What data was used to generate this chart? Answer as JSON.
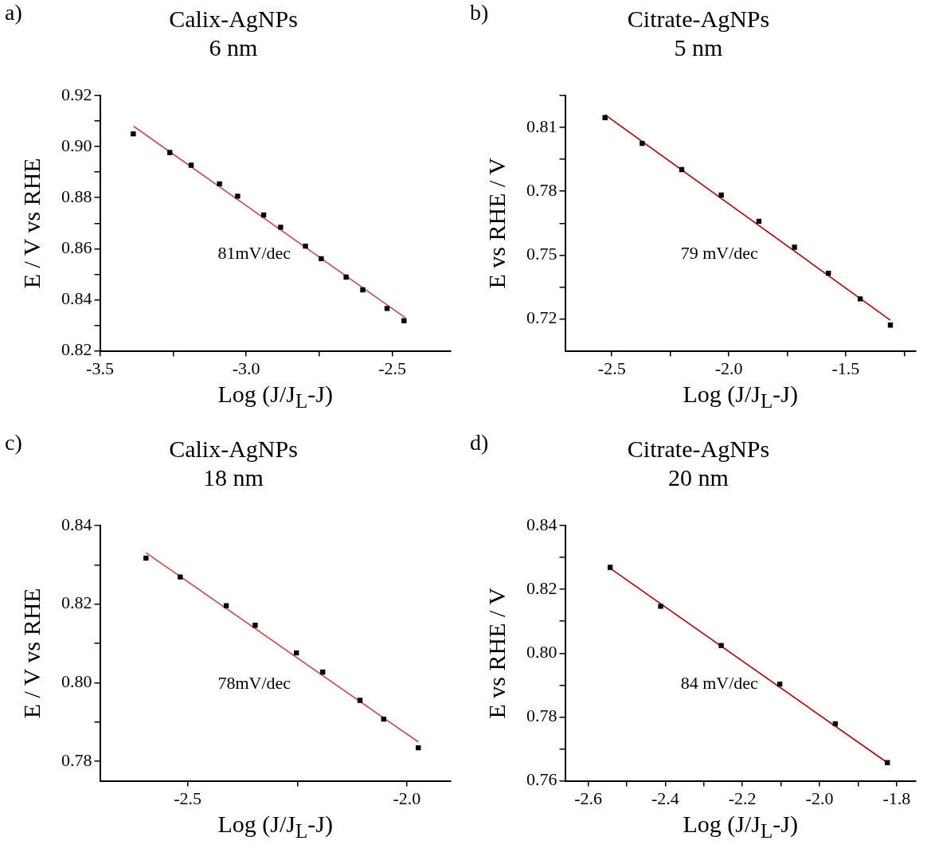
{
  "chart_data": [
    {
      "type": "scatter",
      "title": "Calix-AgNPs",
      "subtitle": "6 nm",
      "xlabel": "Log (J/J$_{L}$-J)",
      "ylabel": "E / V vs RHE",
      "annotations": [
        "a)",
        "81mV/dec"
      ],
      "xlim": [
        -3.5,
        -2.3
      ],
      "xticks": [
        -3.5,
        {
          "value": -3.25,
          "label": null
        },
        {
          "value": -3.0,
          "label": "-3.0"
        },
        {
          "value": -2.75,
          "label": null
        },
        -2.5
      ],
      "ylim": [
        0.82,
        0.92
      ],
      "yticks": [
        {
          "value": 0.82,
          "label": "0.82"
        },
        {
          "value": 0.83,
          "label": null
        },
        {
          "value": 0.84,
          "label": "0.84"
        },
        {
          "value": 0.85,
          "label": null
        },
        {
          "value": 0.86,
          "label": "0.86"
        },
        {
          "value": 0.87,
          "label": null
        },
        {
          "value": 0.88,
          "label": "0.88"
        },
        {
          "value": 0.89,
          "label": null
        },
        {
          "value": 0.9,
          "label": "0.90"
        },
        {
          "value": 0.91,
          "label": null
        },
        {
          "value": 0.92,
          "label": "0.92"
        }
      ],
      "series": [
        {
          "type": "scatter",
          "marker": "square",
          "color": "#000000",
          "x": [
            -3.386,
            -3.261,
            -3.188,
            -3.091,
            -3.029,
            -2.94,
            -2.882,
            -2.797,
            -2.743,
            -2.658,
            -2.601,
            -2.518,
            -2.46
          ],
          "values": [
            0.905,
            0.8977,
            0.8927,
            0.8854,
            0.8806,
            0.8732,
            0.8684,
            0.861,
            0.8561,
            0.8489,
            0.8439,
            0.8366,
            0.8318
          ]
        },
        {
          "type": "line",
          "color": "#d04848",
          "line_style": "solid",
          "x": [
            -3.385,
            -2.456
          ],
          "values": [
            0.908,
            0.833
          ]
        }
      ]
    },
    {
      "type": "scatter",
      "title": "Citrate-AgNPs",
      "subtitle": "5 nm",
      "xlabel": "Log (J/J$_{L}$-J)",
      "ylabel": "E vs RHE / V",
      "annotations": [
        "b)",
        "79 mV/dec"
      ],
      "xlim": [
        -2.7,
        -1.2
      ],
      "xticks": [
        {
          "value": -2.5,
          "label": "-2.5"
        },
        {
          "value": -2.25,
          "label": null
        },
        {
          "value": -2.0,
          "label": "-2.0"
        },
        {
          "value": -1.75,
          "label": null
        },
        {
          "value": -1.5,
          "label": "-1.5"
        },
        {
          "value": -1.25,
          "label": null
        }
      ],
      "ylim": [
        0.705,
        0.825
      ],
      "yticks": [
        {
          "value": 0.72,
          "label": "0.72"
        },
        {
          "value": 0.735,
          "label": null
        },
        {
          "value": 0.75,
          "label": "0.75"
        },
        {
          "value": 0.765,
          "label": null
        },
        {
          "value": 0.78,
          "label": "0.78"
        },
        {
          "value": 0.795,
          "label": null
        },
        {
          "value": 0.81,
          "label": "0.81"
        },
        {
          "value": 0.825,
          "label": null
        }
      ],
      "series": [
        {
          "type": "scatter",
          "marker": "square",
          "color": "#000000",
          "x": [
            -2.529,
            -2.37,
            -2.201,
            -2.032,
            -1.871,
            -1.719,
            -1.574,
            -1.438,
            -1.309
          ],
          "values": [
            0.8146,
            0.8025,
            0.7902,
            0.7782,
            0.7659,
            0.7537,
            0.7415,
            0.7294,
            0.7171
          ]
        },
        {
          "type": "line",
          "color": "#c00000",
          "line_style": "solid",
          "x": [
            -2.529,
            -1.309
          ],
          "values": [
            0.816,
            0.7194
          ]
        }
      ]
    },
    {
      "type": "scatter",
      "title": "Calix-AgNPs",
      "subtitle": "18 nm",
      "xlabel": "Log (J/J$_{L}$-J)",
      "ylabel": "E / V vs RHE",
      "annotations": [
        "c)",
        "78mV/dec"
      ],
      "xlim": [
        -2.7,
        -1.9
      ],
      "xticks": [
        {
          "value": -2.5,
          "label": "-2.5"
        },
        {
          "value": -2.25,
          "label": null
        },
        {
          "value": -2.0,
          "label": "-2.0"
        }
      ],
      "ylim": [
        0.775,
        0.84
      ],
      "yticks": [
        {
          "value": 0.78,
          "label": "0.78"
        },
        {
          "value": 0.79,
          "label": null
        },
        {
          "value": 0.8,
          "label": "0.80"
        },
        {
          "value": 0.81,
          "label": null
        },
        {
          "value": 0.82,
          "label": "0.82"
        },
        {
          "value": 0.83,
          "label": null
        },
        {
          "value": 0.84,
          "label": "0.84"
        }
      ],
      "series": [
        {
          "type": "scatter",
          "marker": "square",
          "color": "#000000",
          "x": [
            -2.595,
            -2.517,
            -2.412,
            -2.346,
            -2.252,
            -2.192,
            -2.107,
            -2.053,
            -1.974
          ],
          "values": [
            0.8317,
            0.8269,
            0.8196,
            0.8146,
            0.8076,
            0.8027,
            0.7955,
            0.7907,
            0.7834
          ]
        },
        {
          "type": "line",
          "color": "#d04848",
          "line_style": "solid",
          "x": [
            -2.595,
            -1.974
          ],
          "values": [
            0.8331,
            0.7849
          ]
        }
      ]
    },
    {
      "type": "scatter",
      "title": "Citrate-AgNPs",
      "subtitle": "20 nm",
      "xlabel": "Log (J/J$_{L}$-J)",
      "ylabel": "E vs RHE / V",
      "annotations": [
        "d)",
        "84 mV/dec"
      ],
      "xlim": [
        -2.66,
        -1.75
      ],
      "xticks": [
        -2.6,
        {
          "value": -2.5,
          "label": null
        },
        -2.4,
        {
          "value": -2.3,
          "label": null
        },
        -2.2,
        {
          "value": -2.1,
          "label": null
        },
        {
          "value": -2.0,
          "label": "-2.0"
        },
        {
          "value": -1.9,
          "label": null
        },
        -1.8
      ],
      "ylim": [
        0.76,
        0.84
      ],
      "yticks": [
        {
          "value": 0.76,
          "label": "0.76"
        },
        {
          "value": 0.77,
          "label": null
        },
        {
          "value": 0.78,
          "label": "0.78"
        },
        {
          "value": 0.79,
          "label": null
        },
        {
          "value": 0.8,
          "label": "0.80"
        },
        {
          "value": 0.81,
          "label": null
        },
        {
          "value": 0.82,
          "label": "0.82"
        },
        {
          "value": 0.83,
          "label": null
        },
        {
          "value": 0.84,
          "label": "0.84"
        }
      ],
      "series": [
        {
          "type": "scatter",
          "marker": "square",
          "color": "#000000",
          "x": [
            -2.543,
            -2.412,
            -2.255,
            -2.103,
            -1.959,
            -1.824
          ],
          "values": [
            0.8269,
            0.8147,
            0.8024,
            0.7903,
            0.7779,
            0.7657
          ]
        },
        {
          "type": "line",
          "color": "#c00000",
          "line_style": "solid",
          "x": [
            -2.543,
            -1.824
          ],
          "values": [
            0.8266,
            0.7657
          ]
        }
      ]
    }
  ]
}
